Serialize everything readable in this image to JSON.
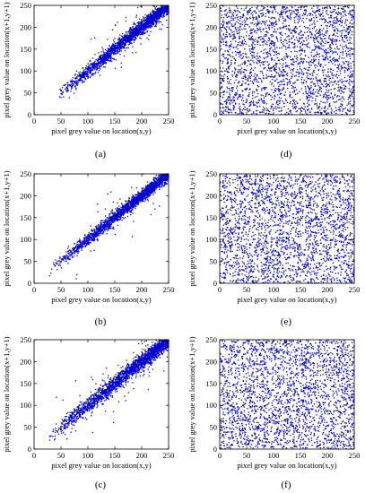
{
  "figure": {
    "panels": [
      {
        "id": "a",
        "caption": "(a)",
        "xlabel": "pixel grey value on location(x,y)",
        "ylabel": "pixel grey value on location(x+1,y+1)"
      },
      {
        "id": "d",
        "caption": "(d)",
        "xlabel": "pixel grey value on location(x,y)",
        "ylabel": "pixel grey value on location(x+1,y+1)"
      },
      {
        "id": "b",
        "caption": "(b)",
        "xlabel": "pixel grey value on location(x,y)",
        "ylabel": "pixel grey value on location(x+1,y+1)"
      },
      {
        "id": "e",
        "caption": "(e)",
        "xlabel": "pixel grey value on location(x,y)",
        "ylabel": "pixel grey value on location(x+1,y+1)"
      },
      {
        "id": "c",
        "caption": "(c)",
        "xlabel": "pixel grey value on location(x,y)",
        "ylabel": "pixel grey value on location(x+1,y+1)"
      },
      {
        "id": "f",
        "caption": "(f)",
        "xlabel": "pixel grey value on location(x,y)",
        "ylabel": "pixel grey value on location(x+1,y+1)"
      }
    ]
  },
  "chart_data": [
    {
      "panel": "a",
      "type": "scatter",
      "pattern": "diagonal",
      "x_range": [
        40,
        250
      ],
      "spread": 8,
      "outlier_fraction": 0.04,
      "xlim": [
        0,
        250
      ],
      "ylim": [
        0,
        250
      ],
      "xticks": [
        0,
        50,
        100,
        150,
        200,
        250
      ],
      "yticks": [
        0,
        50,
        100,
        150,
        200,
        250
      ],
      "xlabel": "pixel grey value on location(x,y)",
      "ylabel": "pixel grey value on location(x+1,y+1)",
      "color": "#0000cc",
      "point_count": 2200
    },
    {
      "panel": "d",
      "type": "scatter",
      "pattern": "uniform",
      "xlim": [
        0,
        250
      ],
      "ylim": [
        0,
        250
      ],
      "xticks": [
        0,
        50,
        100,
        150,
        200,
        250
      ],
      "yticks": [
        0,
        50,
        100,
        150,
        200,
        250
      ],
      "xlabel": "pixel grey value on location(x,y)",
      "ylabel": "pixel grey value on location(x+1,y+1)",
      "color": "#0000cc",
      "point_count": 2600
    },
    {
      "panel": "b",
      "type": "scatter",
      "pattern": "diagonal",
      "x_range": [
        30,
        250
      ],
      "spread": 7,
      "outlier_fraction": 0.03,
      "xlim": [
        0,
        250
      ],
      "ylim": [
        0,
        250
      ],
      "xticks": [
        0,
        50,
        100,
        150,
        200,
        250
      ],
      "yticks": [
        0,
        50,
        100,
        150,
        200,
        250
      ],
      "xlabel": "pixel grey value on location(x,y)",
      "ylabel": "pixel grey value on location(x+1,y+1)",
      "color": "#0000cc",
      "point_count": 2200
    },
    {
      "panel": "e",
      "type": "scatter",
      "pattern": "uniform",
      "xlim": [
        0,
        250
      ],
      "ylim": [
        0,
        250
      ],
      "xticks": [
        0,
        50,
        100,
        150,
        200,
        250
      ],
      "yticks": [
        0,
        50,
        100,
        150,
        200,
        250
      ],
      "xlabel": "pixel grey value on location(x,y)",
      "ylabel": "pixel grey value on location(x+1,y+1)",
      "color": "#0000cc",
      "point_count": 2600
    },
    {
      "panel": "c",
      "type": "scatter",
      "pattern": "diagonal",
      "x_range": [
        25,
        250
      ],
      "spread": 9,
      "outlier_fraction": 0.05,
      "xlim": [
        0,
        250
      ],
      "ylim": [
        0,
        250
      ],
      "xticks": [
        0,
        50,
        100,
        150,
        200,
        250
      ],
      "yticks": [
        0,
        50,
        100,
        150,
        200,
        250
      ],
      "xlabel": "pixel grey value on location(x,y)",
      "ylabel": "pixel grey value on location(x+1,y+1)",
      "color": "#0000cc",
      "point_count": 2200
    },
    {
      "panel": "f",
      "type": "scatter",
      "pattern": "uniform",
      "xlim": [
        0,
        250
      ],
      "ylim": [
        0,
        250
      ],
      "xticks": [
        0,
        50,
        100,
        150,
        200,
        250
      ],
      "yticks": [
        0,
        50,
        100,
        150,
        200,
        250
      ],
      "xlabel": "pixel grey value on location(x,y)",
      "ylabel": "pixel grey value on location(x+1,y+1)",
      "color": "#0000cc",
      "point_count": 2600
    }
  ]
}
